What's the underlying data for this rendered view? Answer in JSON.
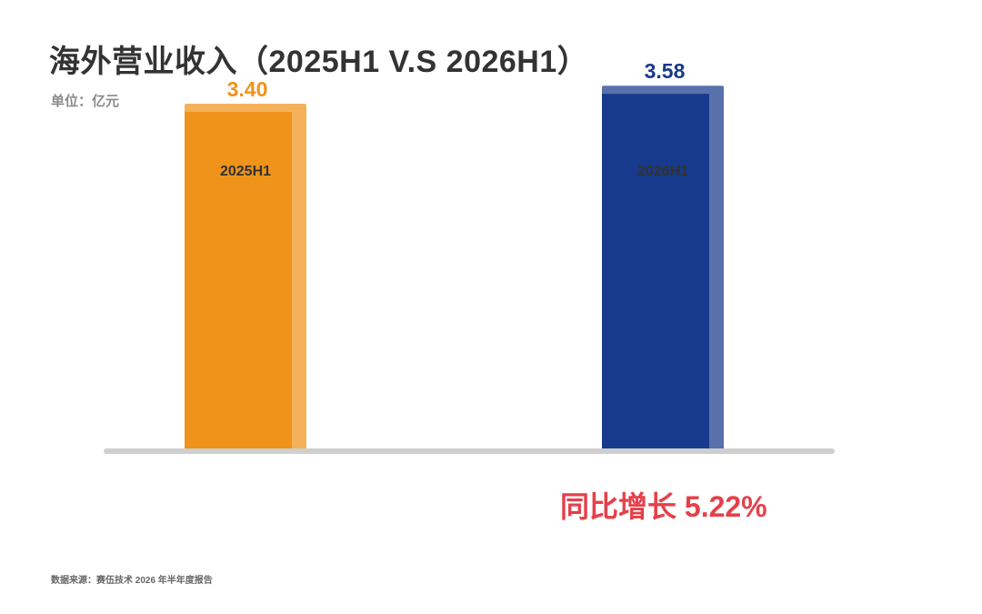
{
  "header": {
    "title": "海外营业收入（2025H1 V.S 2026H1）",
    "unit": "单位：亿元"
  },
  "chart_data": {
    "type": "bar",
    "categories": [
      "2025H1",
      "2026H1"
    ],
    "values": [
      3.4,
      3.58
    ],
    "value_labels": [
      "3.40",
      "3.58"
    ],
    "colors": [
      "#f0931a",
      "#173a8c"
    ],
    "ylim": [
      0,
      4.5
    ],
    "grid": false,
    "legend": "none"
  },
  "growth": {
    "label": "同比增长 5.22%",
    "color": "#e5404a"
  },
  "footer": {
    "source": "数据来源：赛伍技术 2026 年半年度报告"
  }
}
